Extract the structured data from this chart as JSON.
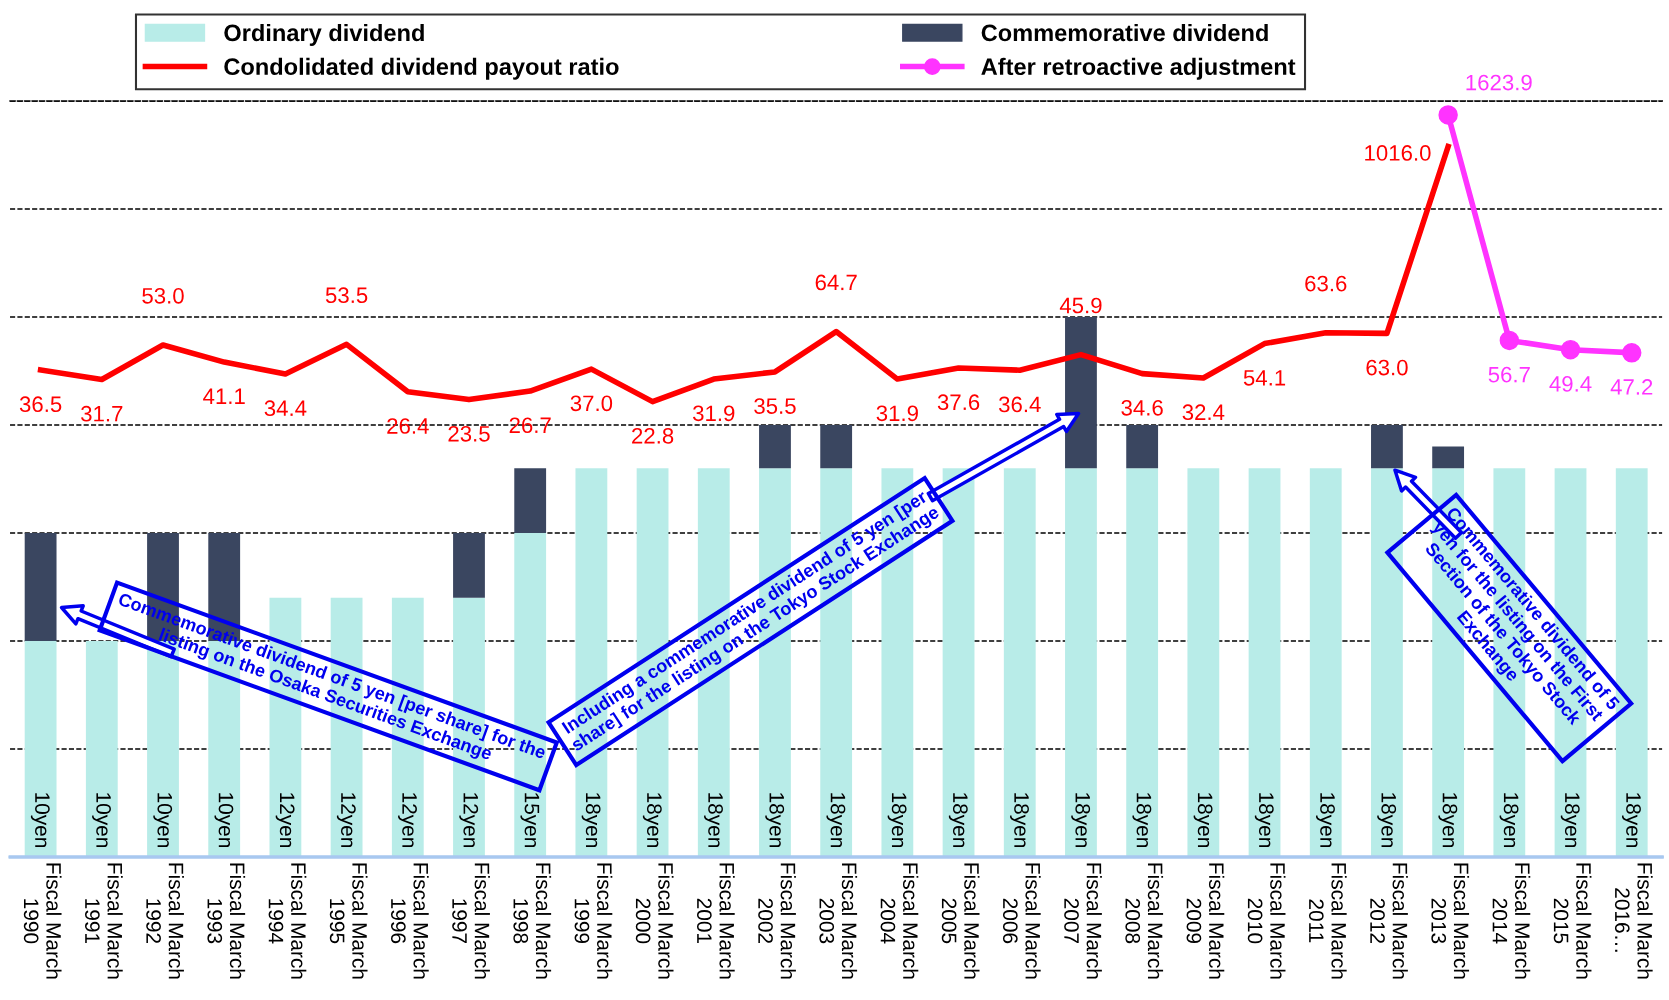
{
  "chart_data": {
    "type": "bar",
    "stacked": true,
    "categories": [
      "Fiscal March\n1990",
      "Fiscal March\n1991",
      "Fiscal March\n1992",
      "Fiscal March\n1993",
      "Fiscal March\n1994",
      "Fiscal March\n1995",
      "Fiscal March\n1996",
      "Fiscal March\n1997",
      "Fiscal March\n1998",
      "Fiscal March\n1999",
      "Fiscal March\n2000",
      "Fiscal March\n2001",
      "Fiscal March\n2002",
      "Fiscal March\n2003",
      "Fiscal March\n2004",
      "Fiscal March\n2005",
      "Fiscal March\n2006",
      "Fiscal March\n2007",
      "Fiscal March\n2008",
      "Fiscal March\n2009",
      "Fiscal March\n2010",
      "Fiscal March\n2011",
      "Fiscal March\n2012",
      "Fiscal March\n2013",
      "Fiscal March\n2014",
      "Fiscal March\n2015",
      "Fiscal March\n2016…"
    ],
    "series": [
      {
        "name": "Ordinary dividend",
        "color": "#b8ece8",
        "values": [
          10,
          10,
          10,
          10,
          12,
          12,
          12,
          12,
          15,
          18,
          18,
          18,
          18,
          18,
          18,
          18,
          18,
          18,
          18,
          18,
          18,
          18,
          18,
          18,
          18,
          18,
          18
        ],
        "value_labels": [
          "10yen",
          "10yen",
          "10yen",
          "10yen",
          "12yen",
          "12yen",
          "12yen",
          "12yen",
          "15yen",
          "18yen",
          "18yen",
          "18yen",
          "18yen",
          "18yen",
          "18yen",
          "18yen",
          "18yen",
          "18yen",
          "18yen",
          "18yen",
          "18yen",
          "18yen",
          "18yen",
          "18yen",
          "18yen",
          "18yen",
          "18yen"
        ]
      },
      {
        "name": "Commemorative dividend",
        "color": "#3a4660",
        "values": [
          5,
          null,
          5,
          5,
          null,
          null,
          null,
          3,
          3,
          null,
          null,
          null,
          2,
          2,
          null,
          null,
          null,
          7,
          2,
          null,
          null,
          null,
          2,
          1,
          null,
          null,
          null
        ]
      },
      {
        "name": "Condolidated dividend payout ratio",
        "type": "line",
        "axis": "y2",
        "color": "#ff0000",
        "marker": "none",
        "line_style": "solid",
        "values": [
          36.5,
          31.7,
          53.0,
          41.1,
          34.4,
          53.5,
          26.4,
          23.5,
          26.7,
          37.0,
          22.8,
          31.9,
          35.5,
          64.7,
          31.9,
          37.6,
          36.4,
          45.9,
          34.6,
          32.4,
          54.1,
          63.6,
          63.0,
          1016.0,
          null,
          null,
          null
        ],
        "value_labels": [
          "36.5",
          "31.7",
          "53.0",
          "41.1",
          "34.4",
          "53.5",
          "26.4",
          "23.5",
          "26.7",
          "37.0",
          "22.8",
          "31.9",
          "35.5",
          "64.7",
          "31.9",
          "37.6",
          "36.4",
          "45.9",
          "34.6",
          "32.4",
          "54.1",
          "63.6",
          "63.0",
          "1016.0",
          null,
          null,
          null
        ]
      },
      {
        "name": "After retroactive adjustment",
        "type": "line",
        "axis": "y2",
        "color": "#ff33ff",
        "marker": "circle",
        "line_style": "solid",
        "values": [
          null,
          null,
          null,
          null,
          null,
          null,
          null,
          null,
          null,
          null,
          null,
          null,
          null,
          null,
          null,
          null,
          null,
          null,
          null,
          null,
          null,
          null,
          null,
          1623.9,
          56.7,
          49.4,
          47.2
        ],
        "value_labels": [
          null,
          null,
          null,
          null,
          null,
          null,
          null,
          null,
          null,
          null,
          null,
          null,
          null,
          null,
          null,
          null,
          null,
          null,
          null,
          null,
          null,
          null,
          null,
          "1623.9",
          "56.7",
          "49.4",
          "47.2"
        ]
      }
    ],
    "ylim": [
      0,
      35
    ],
    "yticks": [
      {
        "value": 0,
        "label": null
      },
      {
        "value": 5,
        "label": null
      },
      {
        "value": 10,
        "label": null
      },
      {
        "value": 15,
        "label": null
      },
      {
        "value": 20,
        "label": null
      },
      {
        "value": 25,
        "label": null
      },
      {
        "value": 30,
        "label": null
      },
      {
        "value": 35,
        "label": null
      }
    ],
    "y2lim": [
      0.026,
      2000
    ],
    "log": "y2",
    "grid": "y",
    "legend": "top",
    "tick_labels": "x",
    "annotations": [
      "Commemorative dividend of 5 yen [per share] for the listing on the Osaka Securities Exchange",
      "Including a commemorative dividend of 5 yen [per share] for the listing on the Tokyo Stock Exchange",
      "Commemorative dividend of 5 yen for the listing on the First Section of the Tokyo Stock Exchange"
    ]
  }
}
